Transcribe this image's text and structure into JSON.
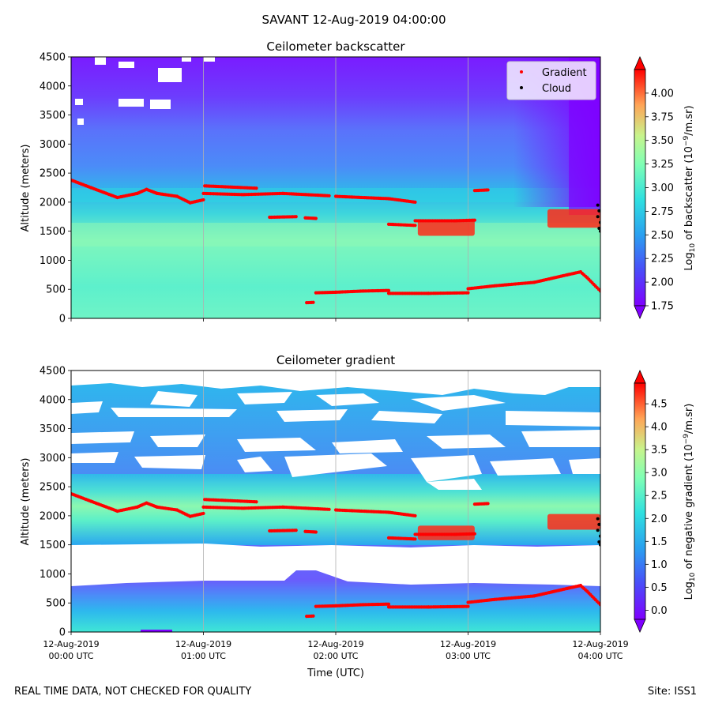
{
  "suptitle": "SAVANT 12-Aug-2019 04:00:00",
  "footer": {
    "left": "REAL TIME DATA, NOT CHECKED FOR QUALITY",
    "right": "Site: ISS1"
  },
  "legend": {
    "gradient_label": "Gradient",
    "cloud_label": "Cloud",
    "placement": "top-right"
  },
  "colors": {
    "low_purple": "#7f00ff",
    "blue": "#4f8dfa",
    "cyan": "#2bd8e8",
    "aqua": "#6cf0c8",
    "green": "#a8f48e",
    "red": "#ff1a10",
    "marker_red": "#ff0000",
    "cloud": "#000000"
  },
  "chart_data": [
    {
      "type": "heatmap",
      "title": "Ceilometer backscatter",
      "xlabel": "",
      "ylabel": "Altitude (meters)",
      "xlim": [
        0,
        4
      ],
      "ylim": [
        0,
        4500
      ],
      "yticks": [
        0,
        500,
        1000,
        1500,
        2000,
        2500,
        3000,
        3500,
        4000,
        4500
      ],
      "xticks": [
        0,
        1,
        2,
        3,
        4
      ],
      "xtick_labels": [],
      "grid": "vertical",
      "colorbar": {
        "label": "Log10 of backscatter (10^-9/m.sr)",
        "label_main": "Log",
        "label_sub": "10",
        "label_mid": " of backscatter (10",
        "label_sup": "−9",
        "label_end": "/m.sr)",
        "vmin": 1.75,
        "vmax": 4.25,
        "ticks": [
          "1.75",
          "2.00",
          "2.25",
          "2.50",
          "2.75",
          "3.00",
          "3.25",
          "3.50",
          "3.75",
          "4.00"
        ]
      },
      "series": [
        {
          "name": "Gradient",
          "kind": "scatter",
          "color": "#ff0000",
          "segments": [
            [
              [
                0.0,
                2380
              ],
              [
                0.15,
                2250
              ],
              [
                0.35,
                2080
              ],
              [
                0.5,
                2150
              ],
              [
                0.57,
                2220
              ],
              [
                0.65,
                2150
              ],
              [
                0.8,
                2100
              ],
              [
                0.9,
                1990
              ],
              [
                1.0,
                2040
              ]
            ],
            [
              [
                1.01,
                2280
              ],
              [
                1.4,
                2240
              ]
            ],
            [
              [
                1.0,
                2150
              ],
              [
                1.3,
                2130
              ],
              [
                1.6,
                2150
              ],
              [
                1.95,
                2110
              ]
            ],
            [
              [
                2.0,
                2100
              ],
              [
                2.4,
                2060
              ],
              [
                2.6,
                2000
              ]
            ],
            [
              [
                1.5,
                1740
              ],
              [
                1.7,
                1750
              ]
            ],
            [
              [
                1.77,
                1730
              ],
              [
                1.85,
                1720
              ]
            ],
            [
              [
                2.4,
                1620
              ],
              [
                2.6,
                1600
              ]
            ],
            [
              [
                2.6,
                1680
              ],
              [
                2.9,
                1680
              ],
              [
                3.05,
                1690
              ]
            ],
            [
              [
                3.05,
                2200
              ],
              [
                3.15,
                2210
              ]
            ],
            [
              [
                1.78,
                270
              ],
              [
                1.83,
                275
              ]
            ],
            [
              [
                1.85,
                440
              ],
              [
                2.0,
                450
              ],
              [
                2.2,
                470
              ],
              [
                2.4,
                480
              ]
            ],
            [
              [
                2.4,
                430
              ],
              [
                2.7,
                430
              ],
              [
                3.0,
                440
              ]
            ],
            [
              [
                3.0,
                510
              ],
              [
                3.2,
                560
              ],
              [
                3.5,
                620
              ],
              [
                3.75,
                750
              ],
              [
                3.85,
                800
              ],
              [
                3.9,
                700
              ],
              [
                4.0,
                470
              ]
            ]
          ],
          "blocks": [
            {
              "x": [
                2.62,
                3.05
              ],
              "y": [
                1420,
                1700
              ]
            },
            {
              "x": [
                3.6,
                4.0
              ],
              "y": [
                1560,
                1880
              ]
            }
          ]
        },
        {
          "name": "Cloud",
          "kind": "scatter",
          "color": "#000000",
          "points": [
            [
              3.98,
              1950
            ],
            [
              3.99,
              1850
            ],
            [
              3.98,
              1750
            ],
            [
              4.0,
              1650
            ],
            [
              3.99,
              1550
            ],
            [
              4.0,
              1500
            ]
          ]
        }
      ]
    },
    {
      "type": "heatmap",
      "title": "Ceilometer gradient",
      "xlabel": "Time (UTC)",
      "ylabel": "Altitude (meters)",
      "xlim": [
        0,
        4
      ],
      "ylim": [
        0,
        4500
      ],
      "yticks": [
        0,
        500,
        1000,
        1500,
        2000,
        2500,
        3000,
        3500,
        4000,
        4500
      ],
      "xticks": [
        0,
        1,
        2,
        3,
        4
      ],
      "xtick_labels": [
        [
          "12-Aug-2019",
          "00:00 UTC"
        ],
        [
          "12-Aug-2019",
          "01:00 UTC"
        ],
        [
          "12-Aug-2019",
          "02:00 UTC"
        ],
        [
          "12-Aug-2019",
          "03:00 UTC"
        ],
        [
          "12-Aug-2019",
          "04:00 UTC"
        ]
      ],
      "grid": "vertical",
      "colorbar": {
        "label": "Log10 of negative gradient (10^-9/m.sr)",
        "label_main": "Log",
        "label_sub": "10",
        "label_mid": " of negative gradient (10",
        "label_sup": "−9",
        "label_end": "/m.sr)",
        "vmin": -0.2,
        "vmax": 4.95,
        "ticks": [
          "0.0",
          "0.5",
          "1.0",
          "1.5",
          "2.0",
          "2.5",
          "3.0",
          "3.5",
          "4.0",
          "4.5"
        ]
      },
      "series": [
        {
          "name": "Gradient",
          "kind": "scatter",
          "color": "#ff0000",
          "segments": [
            [
              [
                0.0,
                2380
              ],
              [
                0.15,
                2250
              ],
              [
                0.35,
                2080
              ],
              [
                0.5,
                2150
              ],
              [
                0.57,
                2220
              ],
              [
                0.65,
                2150
              ],
              [
                0.8,
                2100
              ],
              [
                0.9,
                1990
              ],
              [
                1.0,
                2040
              ]
            ],
            [
              [
                1.01,
                2280
              ],
              [
                1.4,
                2240
              ]
            ],
            [
              [
                1.0,
                2150
              ],
              [
                1.3,
                2130
              ],
              [
                1.6,
                2150
              ],
              [
                1.95,
                2110
              ]
            ],
            [
              [
                2.0,
                2100
              ],
              [
                2.4,
                2060
              ],
              [
                2.6,
                2000
              ]
            ],
            [
              [
                1.5,
                1740
              ],
              [
                1.7,
                1750
              ]
            ],
            [
              [
                1.77,
                1730
              ],
              [
                1.85,
                1720
              ]
            ],
            [
              [
                2.4,
                1620
              ],
              [
                2.6,
                1600
              ]
            ],
            [
              [
                2.6,
                1680
              ],
              [
                2.9,
                1680
              ],
              [
                3.05,
                1690
              ]
            ],
            [
              [
                3.05,
                2200
              ],
              [
                3.15,
                2210
              ]
            ],
            [
              [
                1.78,
                270
              ],
              [
                1.83,
                275
              ]
            ],
            [
              [
                1.85,
                440
              ],
              [
                2.0,
                450
              ],
              [
                2.2,
                470
              ],
              [
                2.4,
                480
              ]
            ],
            [
              [
                2.4,
                430
              ],
              [
                2.7,
                430
              ],
              [
                3.0,
                440
              ]
            ],
            [
              [
                3.0,
                510
              ],
              [
                3.2,
                560
              ],
              [
                3.5,
                620
              ],
              [
                3.75,
                750
              ],
              [
                3.85,
                800
              ],
              [
                3.9,
                700
              ],
              [
                4.0,
                470
              ]
            ]
          ],
          "blocks": [
            {
              "x": [
                2.62,
                3.05
              ],
              "y": [
                1580,
                1830
              ]
            },
            {
              "x": [
                3.6,
                4.0
              ],
              "y": [
                1760,
                2030
              ]
            }
          ]
        },
        {
          "name": "Cloud",
          "kind": "scatter",
          "color": "#000000",
          "points": [
            [
              3.98,
              1950
            ],
            [
              3.99,
              1850
            ],
            [
              3.98,
              1750
            ],
            [
              4.0,
              1650
            ],
            [
              3.99,
              1550
            ],
            [
              4.0,
              1500
            ]
          ]
        }
      ]
    }
  ]
}
